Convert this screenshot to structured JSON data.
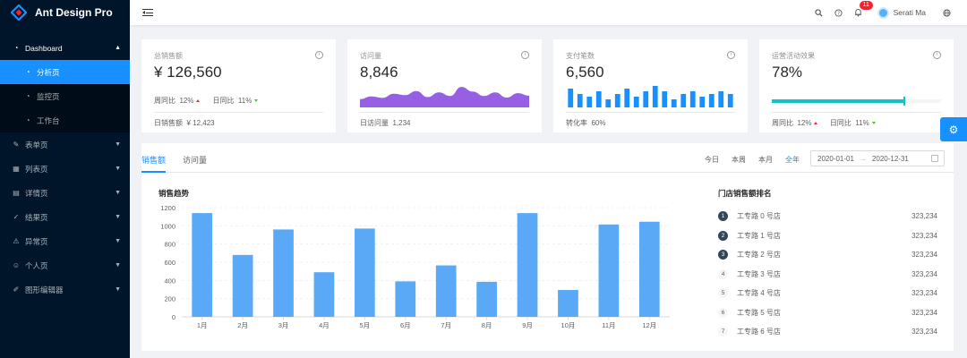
{
  "app": {
    "title": "Ant Design Pro"
  },
  "sidebar": {
    "dashboard": "Dashboard",
    "dashboard_children": [
      {
        "label": "分析页",
        "icon": "dashboard-icon",
        "active": true
      },
      {
        "label": "监控页",
        "icon": "dashboard-icon",
        "active": false
      },
      {
        "label": "工作台",
        "icon": "dashboard-icon",
        "active": false
      }
    ],
    "items": [
      {
        "label": "表单页",
        "icon": "form-icon"
      },
      {
        "label": "列表页",
        "icon": "table-icon"
      },
      {
        "label": "详情页",
        "icon": "profile-icon"
      },
      {
        "label": "结果页",
        "icon": "check-circle-icon"
      },
      {
        "label": "异常页",
        "icon": "warning-icon"
      },
      {
        "label": "个人页",
        "icon": "user-icon"
      },
      {
        "label": "图形编辑器",
        "icon": "highlight-icon"
      }
    ]
  },
  "header": {
    "notification_count": "11",
    "username": "Serati Ma"
  },
  "cards": {
    "sales": {
      "title": "总销售额",
      "value": "¥ 126,560",
      "week_label": "周同比",
      "week_val": "12%",
      "day_label": "日同比",
      "day_val": "11%",
      "footer_label": "日销售额",
      "footer_val": "¥ 12,423"
    },
    "visits": {
      "title": "访问量",
      "value": "8,846",
      "footer_label": "日访问量",
      "footer_val": "1,234"
    },
    "payments": {
      "title": "支付笔数",
      "value": "6,560",
      "footer_label": "转化率",
      "footer_val": "60%"
    },
    "operations": {
      "title": "运营活动效果",
      "value": "78%",
      "progress": 0.78,
      "week_label": "周同比",
      "week_val": "12%",
      "day_label": "日同比",
      "day_val": "11%"
    }
  },
  "tabs": {
    "sales": "销售额",
    "visits": "访问量"
  },
  "range": {
    "today": "今日",
    "week": "本周",
    "month": "本月",
    "year": "全年"
  },
  "picker": {
    "start": "2020-01-01",
    "end": "2020-12-31"
  },
  "chart_title": "销售趋势",
  "rank": {
    "title": "门店销售额排名",
    "items": [
      {
        "num": "1",
        "name": "工专路 0 号店",
        "value": "323,234"
      },
      {
        "num": "2",
        "name": "工专路 1 号店",
        "value": "323,234"
      },
      {
        "num": "3",
        "name": "工专路 2 号店",
        "value": "323,234"
      },
      {
        "num": "4",
        "name": "工专路 3 号店",
        "value": "323,234"
      },
      {
        "num": "5",
        "name": "工专路 4 号店",
        "value": "323,234"
      },
      {
        "num": "6",
        "name": "工专路 5 号店",
        "value": "323,234"
      },
      {
        "num": "7",
        "name": "工专路 6 号店",
        "value": "323,234"
      }
    ]
  },
  "colors": {
    "primary": "#1890ff",
    "visit_area": "#975fe4",
    "progress": "#13c2c2",
    "sider": "#001529"
  },
  "chart_data": [
    {
      "type": "bar",
      "title": "销售趋势",
      "categories": [
        "1月",
        "2月",
        "3月",
        "4月",
        "5月",
        "6月",
        "7月",
        "8月",
        "9月",
        "10月",
        "11月",
        "12月"
      ],
      "values": [
        1140,
        680,
        960,
        490,
        970,
        390,
        565,
        385,
        1140,
        295,
        1015,
        1045
      ],
      "yticks": [
        "0",
        "200",
        "400",
        "600",
        "800",
        "1000",
        "1200"
      ],
      "ylim": [
        0,
        1200
      ],
      "xlabel": "",
      "ylabel": ""
    },
    {
      "type": "area",
      "title": "访问量 mini",
      "values": [
        3,
        4,
        3.5,
        5,
        4.5,
        6,
        3.8,
        5.5,
        4.2,
        7.5,
        5.8,
        4.2,
        5.5,
        3.6,
        5.2,
        4.3
      ]
    },
    {
      "type": "bar",
      "title": "支付笔数 mini",
      "values": [
        7,
        5,
        4,
        6,
        3,
        5,
        7,
        4,
        6,
        8,
        6,
        3,
        5,
        6,
        4,
        5,
        6,
        5
      ]
    }
  ]
}
